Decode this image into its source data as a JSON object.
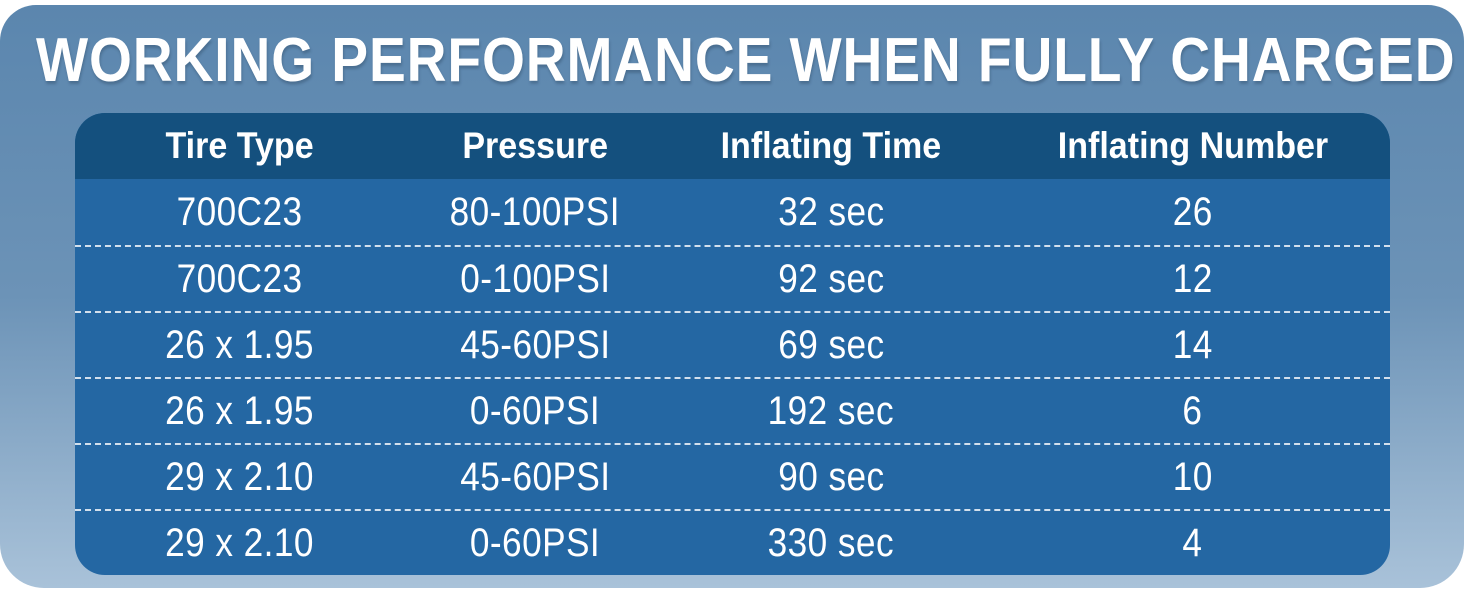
{
  "title": "WORKING PERFORMANCE WHEN FULLY CHARGED",
  "table": {
    "columns": [
      "Tire Type",
      "Pressure",
      "Inflating Time",
      "Inflating Number"
    ],
    "rows": [
      [
        "700C23",
        "80-100PSI",
        "32 sec",
        "26"
      ],
      [
        "700C23",
        "0-100PSI",
        "92 sec",
        "12"
      ],
      [
        "26 x 1.95",
        "45-60PSI",
        "69 sec",
        "14"
      ],
      [
        "26 x 1.95",
        "0-60PSI",
        "192 sec",
        "6"
      ],
      [
        "29 x 2.10",
        "45-60PSI",
        "90 sec",
        "10"
      ],
      [
        "29 x 2.10",
        "0-60PSI",
        "330 sec",
        "4"
      ]
    ]
  },
  "chart_data": {
    "type": "table",
    "title": "WORKING PERFORMANCE WHEN FULLY CHARGED",
    "columns": [
      "Tire Type",
      "Pressure",
      "Inflating Time",
      "Inflating Number"
    ],
    "rows": [
      [
        "700C23",
        "80-100PSI",
        "32 sec",
        "26"
      ],
      [
        "700C23",
        "0-100PSI",
        "92 sec",
        "12"
      ],
      [
        "26 x 1.95",
        "45-60PSI",
        "69 sec",
        "14"
      ],
      [
        "26 x 1.95",
        "0-60PSI",
        "192 sec",
        "6"
      ],
      [
        "29 x 2.10",
        "45-60PSI",
        "90 sec",
        "10"
      ],
      [
        "29 x 2.10",
        "0-60PSI",
        "330 sec",
        "4"
      ]
    ]
  },
  "colors": {
    "panel_top": "#5b86ae",
    "panel_mid": "#6c93b7",
    "panel_bottom": "#a9c2d9",
    "table_header_bg": "#14507e",
    "table_body_bg": "#2467a3",
    "text": "#ffffff",
    "divider": "#ffffff"
  }
}
